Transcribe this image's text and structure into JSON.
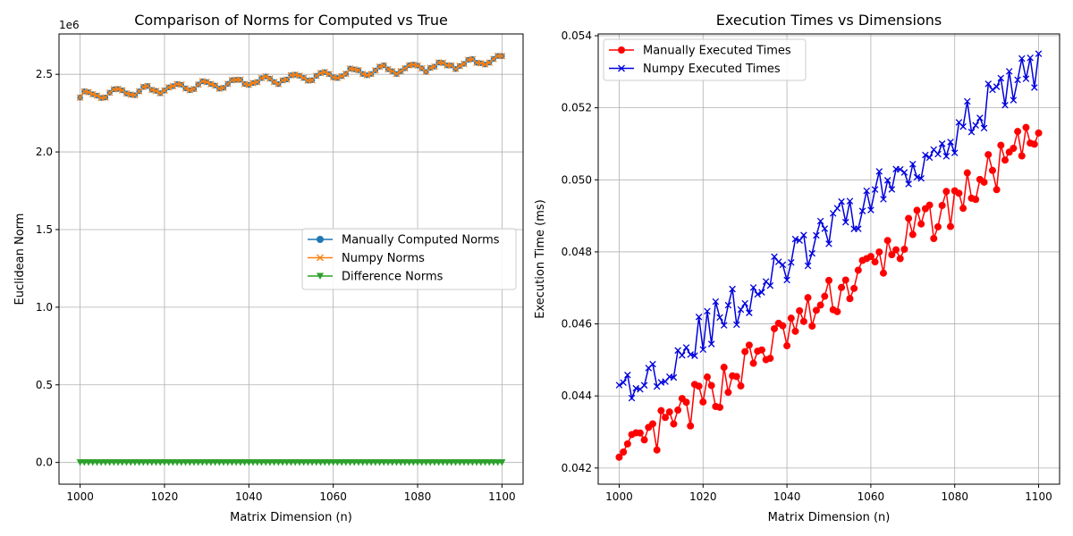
{
  "charts": [
    {
      "type": "line",
      "title": "Comparison of Norms for Computed vs True",
      "xlabel": "Matrix Dimension (n)",
      "ylabel": "Euclidean Norm",
      "offset_label": "1e6",
      "xlim": [
        995,
        1105
      ],
      "ylim": [
        -0.14,
        2.76
      ],
      "xticks": [
        1000,
        1020,
        1040,
        1060,
        1080,
        1100
      ],
      "yticks": [
        0.0,
        0.5,
        1.0,
        1.5,
        2.0,
        2.5
      ],
      "ytick_labels": [
        "0.0",
        "0.5",
        "1.0",
        "1.5",
        "2.0",
        "2.5"
      ],
      "grid": true,
      "legend_position": "center-right",
      "series": [
        {
          "name": "Manually Computed Norms",
          "color": "#1f77b4",
          "marker": "circle",
          "start": 2.36,
          "end": 2.59
        },
        {
          "name": "Numpy Norms",
          "color": "#ff7f0e",
          "marker": "x",
          "start": 2.36,
          "end": 2.59
        },
        {
          "name": "Difference Norms",
          "color": "#2ca02c",
          "marker": "triangle-down",
          "start": 0.0,
          "end": 0.0
        }
      ]
    },
    {
      "type": "line",
      "title": "Execution Times vs Dimensions",
      "xlabel": "Matrix Dimension (n)",
      "ylabel": "Execution Time (ms)",
      "xlim": [
        995,
        1105
      ],
      "ylim": [
        0.04155,
        0.05405
      ],
      "xticks": [
        1000,
        1020,
        1040,
        1060,
        1080,
        1100
      ],
      "yticks": [
        0.042,
        0.044,
        0.046,
        0.048,
        0.05,
        0.052,
        0.054
      ],
      "ytick_labels": [
        "0.042",
        "0.044",
        "0.046",
        "0.048",
        "0.050",
        "0.052",
        "0.054"
      ],
      "grid": true,
      "legend_position": "upper-left",
      "series": [
        {
          "name": "Manually Executed Times",
          "color": "#ff0000",
          "marker": "circle",
          "start": 0.0423,
          "end": 0.0513
        },
        {
          "name": "Numpy Executed Times",
          "color": "#0000dd",
          "marker": "x",
          "start": 0.0443,
          "end": 0.0535
        }
      ]
    }
  ]
}
